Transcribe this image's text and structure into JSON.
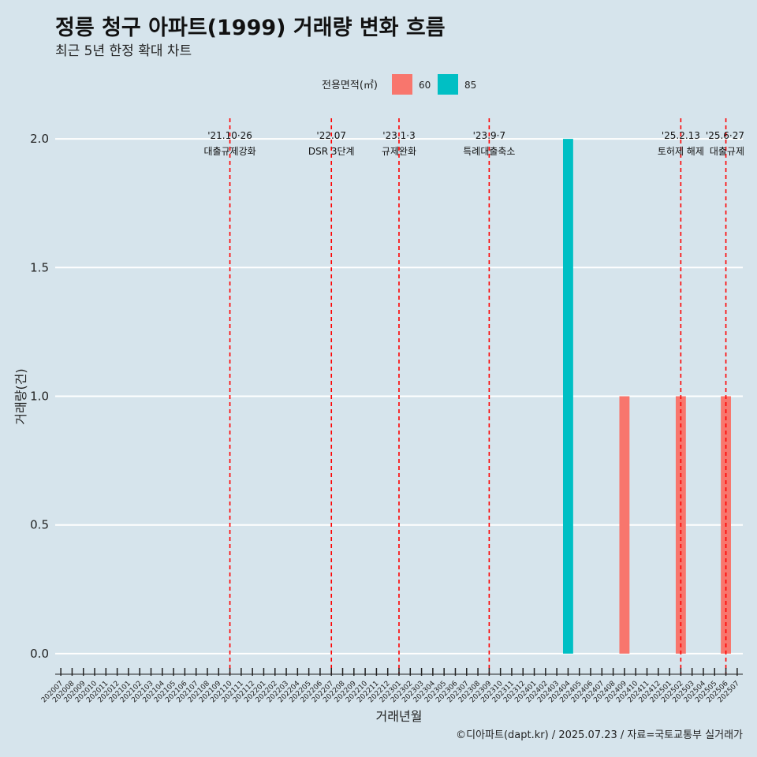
{
  "title": "정릉 청구 아파트(1999) 거래량 변화 흐름",
  "subtitle": "최근 5년 한정 확대 차트",
  "caption": "©디아파트(dapt.kr) / 2025.07.23 / 자료=국토교통부 실거래가",
  "colors": {
    "background": "#d6e4ec",
    "series_60": "#f8766d",
    "series_85": "#00bfc4",
    "event_line": "#ff0000",
    "grid": "#ffffff"
  },
  "chart_data": {
    "type": "bar",
    "xlabel": "거래년월",
    "ylabel": "거래량(건)",
    "ylim": [
      -0.08,
      2.08
    ],
    "yticks": [
      "0.0",
      "0.5",
      "1.0",
      "1.5",
      "2.0"
    ],
    "grid": "horizontal",
    "legend_title": "전용면적(㎡)",
    "legend_position": "top",
    "categories": [
      "202007",
      "202008",
      "202009",
      "202010",
      "202011",
      "202012",
      "202101",
      "202102",
      "202103",
      "202104",
      "202105",
      "202106",
      "202107",
      "202108",
      "202109",
      "202110",
      "202111",
      "202112",
      "202201",
      "202202",
      "202203",
      "202204",
      "202205",
      "202206",
      "202207",
      "202208",
      "202209",
      "202210",
      "202211",
      "202212",
      "202301",
      "202302",
      "202303",
      "202304",
      "202305",
      "202306",
      "202307",
      "202308",
      "202309",
      "202310",
      "202311",
      "202312",
      "202401",
      "202402",
      "202403",
      "202404",
      "202405",
      "202406",
      "202407",
      "202408",
      "202409",
      "202410",
      "202411",
      "202412",
      "202501",
      "202502",
      "202503",
      "202504",
      "202505",
      "202506",
      "202507"
    ],
    "series": [
      {
        "name": "60",
        "color": "#f8766d",
        "points": [
          {
            "x": "202409",
            "y": 1
          },
          {
            "x": "202502",
            "y": 1
          },
          {
            "x": "202506",
            "y": 1
          }
        ]
      },
      {
        "name": "85",
        "color": "#00bfc4",
        "points": [
          {
            "x": "202404",
            "y": 2
          }
        ]
      }
    ],
    "events": [
      {
        "x": "202110",
        "date": "'21.10·26",
        "label": "대출규제강화"
      },
      {
        "x": "202207",
        "date": "'22.07",
        "label": "DSR 3단계"
      },
      {
        "x": "202301",
        "date": "'23.1·3",
        "label": "규제완화"
      },
      {
        "x": "202309",
        "date": "'23.9·7",
        "label": "특례대출축소"
      },
      {
        "x": "202502",
        "date": "'25.2.13",
        "label": "토허제 해제"
      },
      {
        "x": "202506",
        "date": "'25.6·27",
        "label": "대출규제"
      }
    ]
  }
}
